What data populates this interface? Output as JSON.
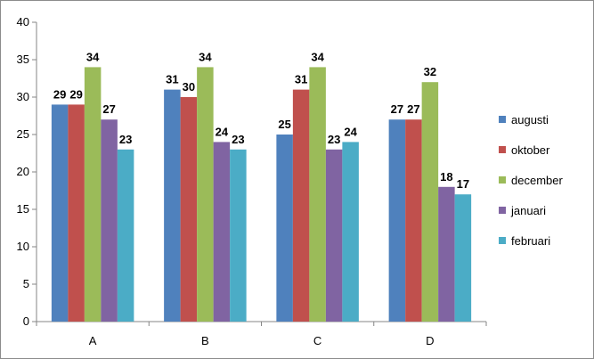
{
  "chart_data": {
    "type": "bar",
    "categories": [
      "A",
      "B",
      "C",
      "D"
    ],
    "series": [
      {
        "name": "augusti",
        "color": "#4f81bd",
        "values": [
          29,
          31,
          25,
          27
        ]
      },
      {
        "name": "oktober",
        "color": "#c0504d",
        "values": [
          29,
          30,
          31,
          27
        ]
      },
      {
        "name": "december",
        "color": "#9bbb59",
        "values": [
          34,
          34,
          34,
          32
        ]
      },
      {
        "name": "januari",
        "color": "#8064a2",
        "values": [
          27,
          24,
          23,
          18
        ]
      },
      {
        "name": "februari",
        "color": "#4bacc6",
        "values": [
          23,
          23,
          24,
          17
        ]
      }
    ],
    "ylim": [
      0,
      40
    ],
    "yticks": [
      0,
      5,
      10,
      15,
      20,
      25,
      30,
      35,
      40
    ],
    "grid": false,
    "legend_position": "right",
    "data_labels": true
  }
}
